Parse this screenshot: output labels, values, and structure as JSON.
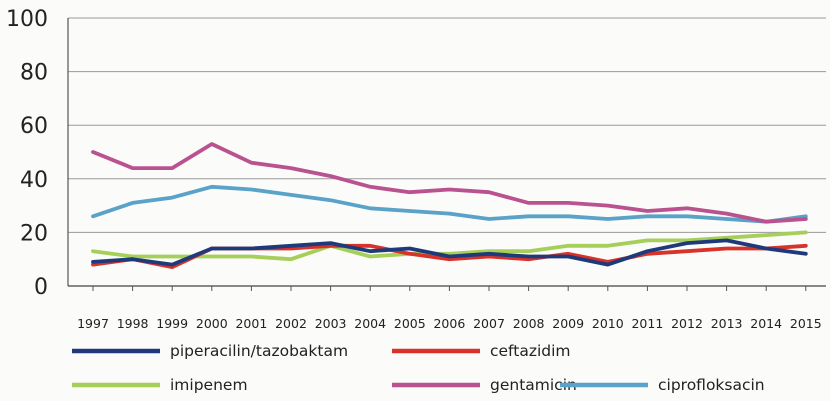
{
  "chart_data": {
    "type": "line",
    "title": "",
    "xlabel": "",
    "ylabel": "",
    "ylim": [
      0,
      100
    ],
    "yticks": [
      0,
      20,
      40,
      60,
      80,
      100
    ],
    "grid": true,
    "legend_position": "bottom",
    "x": [
      "1997",
      "1998",
      "1999",
      "2000",
      "2001",
      "2002",
      "2003",
      "2004",
      "2005",
      "2006",
      "2007",
      "2008",
      "2009",
      "2010",
      "2011",
      "2012",
      "2013",
      "2014",
      "2015"
    ],
    "series": [
      {
        "name": "piperacilin/tazobaktam",
        "color": "#1f3a7a",
        "values": [
          9,
          10,
          8,
          14,
          14,
          15,
          16,
          13,
          14,
          11,
          12,
          11,
          11,
          8,
          13,
          16,
          17,
          14,
          12
        ]
      },
      {
        "name": "ceftazidim",
        "color": "#d8332a",
        "values": [
          8,
          10,
          7,
          14,
          14,
          14,
          15,
          15,
          12,
          10,
          11,
          10,
          12,
          9,
          12,
          13,
          14,
          14,
          15
        ]
      },
      {
        "name": "imipenem",
        "color": "#a6cf5a",
        "values": [
          13,
          11,
          11,
          11,
          11,
          10,
          15,
          11,
          12,
          12,
          13,
          13,
          15,
          15,
          17,
          17,
          18,
          19,
          20
        ]
      },
      {
        "name": "gentamicin",
        "color": "#b9528f",
        "values": [
          50,
          44,
          44,
          53,
          46,
          44,
          41,
          37,
          35,
          36,
          35,
          31,
          31,
          30,
          28,
          29,
          27,
          24,
          25
        ]
      },
      {
        "name": "ciprofloksacin",
        "color": "#5aa2c8",
        "values": [
          26,
          31,
          33,
          37,
          36,
          34,
          32,
          29,
          28,
          27,
          25,
          26,
          26,
          25,
          26,
          26,
          25,
          24,
          26
        ]
      }
    ],
    "legend_rows": [
      [
        "piperacilin/tazobaktam",
        "ceftazidim"
      ],
      [
        "imipenem",
        "gentamicin",
        "ciprofloksacin"
      ]
    ]
  }
}
